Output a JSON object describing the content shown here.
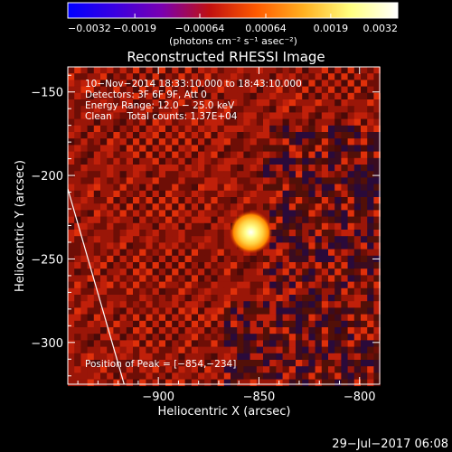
{
  "chart_data": {
    "type": "heatmap",
    "title": "Reconstructed RHESSI Image",
    "xlabel": "Heliocentric X (arcsec)",
    "ylabel": "Heliocentric Y (arcsec)",
    "xlim": [
      -945,
      -790
    ],
    "ylim": [
      -325,
      -135
    ],
    "x_ticks": [
      {
        "value": -900,
        "label": "−900"
      },
      {
        "value": -850,
        "label": "−850"
      },
      {
        "value": -800,
        "label": "−800"
      }
    ],
    "y_ticks": [
      {
        "value": -150,
        "label": "−150"
      },
      {
        "value": -200,
        "label": "−200"
      },
      {
        "value": -250,
        "label": "−250"
      },
      {
        "value": -300,
        "label": "−300"
      }
    ],
    "colorbar": {
      "range": [
        -0.0032,
        0.0032
      ],
      "ticks": [
        {
          "value": -0.0032,
          "label": "−0.0032"
        },
        {
          "value": -0.0019,
          "label": "−0.0019"
        },
        {
          "value": -0.00064,
          "label": "−0.00064"
        },
        {
          "value": 0.00064,
          "label": "0.00064"
        },
        {
          "value": 0.0019,
          "label": "0.0019"
        },
        {
          "value": 0.0032,
          "label": "0.0032"
        }
      ],
      "unit_label": "(photons cm⁻² s⁻¹ asec⁻²)",
      "colormap": [
        "#0000ff",
        "#3a00e0",
        "#7a00b0",
        "#c01010",
        "#ff5a00",
        "#ffb020",
        "#ffff80",
        "#ffffff"
      ]
    },
    "peak": {
      "x": -854,
      "y": -234
    },
    "annotations": [
      "10−Nov−2014 18:33:10.000 to 18:43:10.000",
      "Detectors: 3F 6F 9F, Att 0",
      "Energy Range: 12.0 − 25.0 keV",
      "Clean     Total counts: 1.37E+04"
    ],
    "peak_label": "Position of Peak = [−854,−234]",
    "limb_line": [
      {
        "x": -945,
        "y": -208
      },
      {
        "x": -917,
        "y": -325
      }
    ]
  },
  "footer": {
    "date": "29−Jul−2017 06:08"
  }
}
